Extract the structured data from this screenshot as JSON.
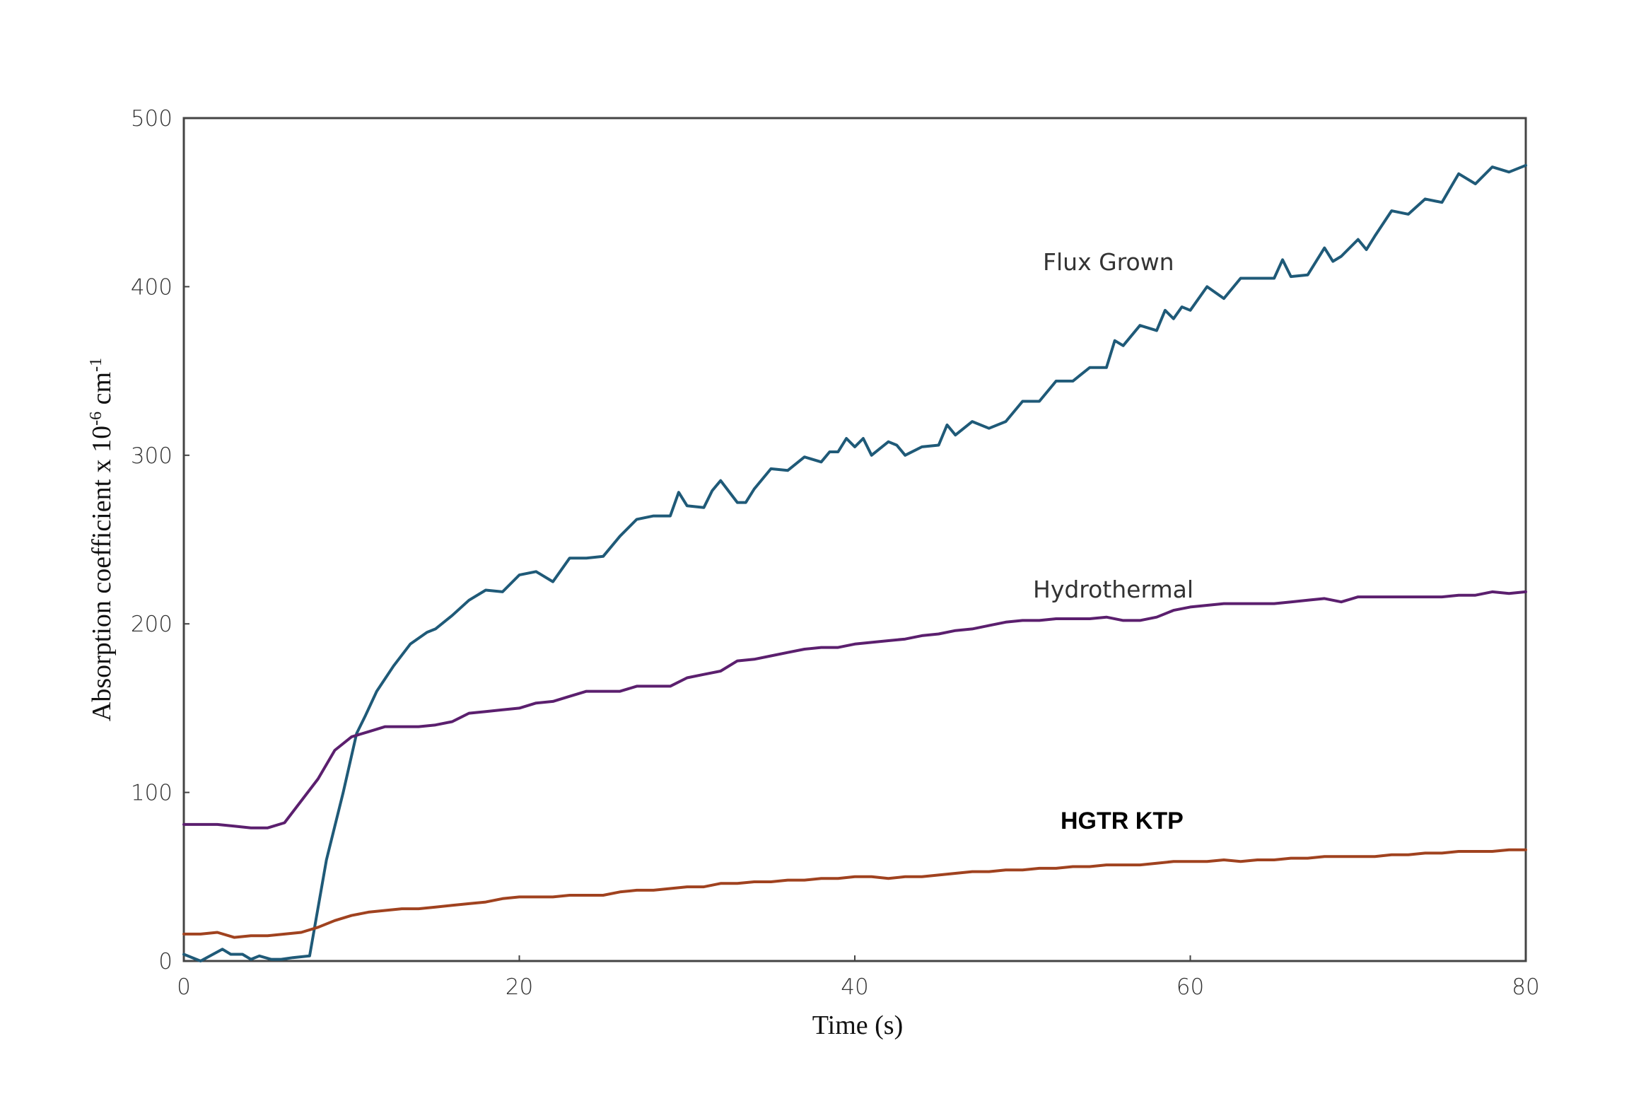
{
  "chart_data": {
    "type": "line",
    "title": "",
    "xlabel": "Time (s)",
    "ylabel_main": "Absorption coefficient x 10",
    "ylabel_exp": "-6",
    "ylabel_unit": " cm",
    "ylabel_unit_exp": "-1",
    "xlim": [
      0,
      80
    ],
    "ylim": [
      0,
      500
    ],
    "x_ticks": [
      "0",
      "20",
      "40",
      "60",
      "80"
    ],
    "y_ticks": [
      "0",
      "100",
      "200",
      "300",
      "400",
      "500"
    ],
    "grid": false,
    "legend": "inline labels",
    "series": [
      {
        "name": "Flux Grown",
        "color": "#1f5a78",
        "x": [
          0,
          1,
          2.3,
          2.8,
          3.5,
          4,
          4.5,
          5.2,
          5.8,
          6.5,
          7.5,
          8.5,
          9.5,
          10.3,
          10.8,
          11.5,
          12.5,
          13.5,
          14.5,
          15,
          16,
          17,
          18,
          19,
          20,
          21,
          22,
          23,
          24,
          25,
          26,
          27,
          28,
          29,
          29.5,
          30,
          31,
          31.5,
          32,
          33,
          33.5,
          34,
          35,
          36,
          37,
          38,
          38.5,
          39,
          39.5,
          40,
          40.5,
          41,
          42,
          42.5,
          43,
          44,
          45,
          45.5,
          46,
          47,
          48,
          49,
          50,
          51,
          52,
          53,
          54,
          55,
          55.5,
          56,
          57,
          58,
          58.5,
          59,
          59.5,
          60,
          61,
          62,
          63,
          64,
          65,
          65.5,
          66,
          67,
          68,
          68.5,
          69,
          70,
          70.5,
          71,
          72,
          73,
          74,
          75,
          76,
          77,
          78,
          79,
          80
        ],
        "values": [
          4,
          0,
          7,
          4,
          4,
          1,
          3,
          1,
          1,
          2,
          3,
          60,
          100,
          135,
          145,
          160,
          175,
          188,
          195,
          197,
          205,
          214,
          220,
          219,
          229,
          231,
          225,
          239,
          239,
          240,
          252,
          262,
          264,
          264,
          278,
          270,
          269,
          279,
          285,
          272,
          272,
          280,
          292,
          291,
          299,
          296,
          302,
          302,
          310,
          305,
          310,
          300,
          308,
          306,
          300,
          305,
          306,
          318,
          312,
          320,
          316,
          320,
          332,
          332,
          344,
          344,
          352,
          352,
          368,
          365,
          377,
          374,
          386,
          381,
          388,
          386,
          400,
          393,
          405,
          405,
          405,
          416,
          406,
          407,
          423,
          415,
          418,
          428,
          422,
          430,
          445,
          443,
          452,
          450,
          467,
          461,
          471,
          468,
          472
        ]
      },
      {
        "name": "Hydrothermal",
        "color": "#5b1f6e",
        "x": [
          0,
          1,
          2,
          3,
          4,
          5,
          6,
          7,
          8,
          9,
          10,
          11,
          12,
          13,
          14,
          15,
          16,
          17,
          18,
          19,
          20,
          21,
          22,
          23,
          24,
          25,
          26,
          27,
          28,
          29,
          30,
          31,
          32,
          33,
          34,
          35,
          36,
          37,
          38,
          39,
          40,
          41,
          42,
          43,
          44,
          45,
          46,
          47,
          48,
          49,
          50,
          51,
          52,
          53,
          54,
          55,
          56,
          57,
          58,
          59,
          60,
          61,
          62,
          63,
          64,
          65,
          66,
          67,
          68,
          69,
          70,
          71,
          72,
          73,
          74,
          75,
          76,
          77,
          78,
          79,
          80
        ],
        "values": [
          81,
          81,
          81,
          80,
          79,
          79,
          82,
          95,
          108,
          125,
          133,
          136,
          139,
          139,
          139,
          140,
          142,
          147,
          148,
          149,
          150,
          153,
          154,
          157,
          160,
          160,
          160,
          163,
          163,
          163,
          168,
          170,
          172,
          178,
          179,
          181,
          183,
          185,
          186,
          186,
          188,
          189,
          190,
          191,
          193,
          194,
          196,
          197,
          199,
          201,
          202,
          202,
          203,
          203,
          203,
          204,
          202,
          202,
          204,
          208,
          210,
          211,
          212,
          212,
          212,
          212,
          213,
          214,
          215,
          213,
          216,
          216,
          216,
          216,
          216,
          216,
          217,
          217,
          219,
          218,
          219
        ]
      },
      {
        "name": "HGTR KTP",
        "color": "#a0421f",
        "x": [
          0,
          1,
          2,
          3,
          4,
          5,
          6,
          7,
          8,
          9,
          10,
          11,
          12,
          13,
          14,
          15,
          16,
          17,
          18,
          19,
          20,
          21,
          22,
          23,
          24,
          25,
          26,
          27,
          28,
          29,
          30,
          31,
          32,
          33,
          34,
          35,
          36,
          37,
          38,
          39,
          40,
          41,
          42,
          43,
          44,
          45,
          46,
          47,
          48,
          49,
          50,
          51,
          52,
          53,
          54,
          55,
          56,
          57,
          58,
          59,
          60,
          61,
          62,
          63,
          64,
          65,
          66,
          67,
          68,
          69,
          70,
          71,
          72,
          73,
          74,
          75,
          76,
          77,
          78,
          79,
          80
        ],
        "values": [
          16,
          16,
          17,
          14,
          15,
          15,
          16,
          17,
          20,
          24,
          27,
          29,
          30,
          31,
          31,
          32,
          33,
          34,
          35,
          37,
          38,
          38,
          38,
          39,
          39,
          39,
          41,
          42,
          42,
          43,
          44,
          44,
          46,
          46,
          47,
          47,
          48,
          48,
          49,
          49,
          50,
          50,
          49,
          50,
          50,
          51,
          52,
          53,
          53,
          54,
          54,
          55,
          55,
          56,
          56,
          57,
          57,
          57,
          58,
          59,
          59,
          59,
          60,
          59,
          60,
          60,
          61,
          61,
          62,
          62,
          62,
          62,
          63,
          63,
          64,
          64,
          65,
          65,
          65,
          66,
          66
        ]
      }
    ]
  }
}
